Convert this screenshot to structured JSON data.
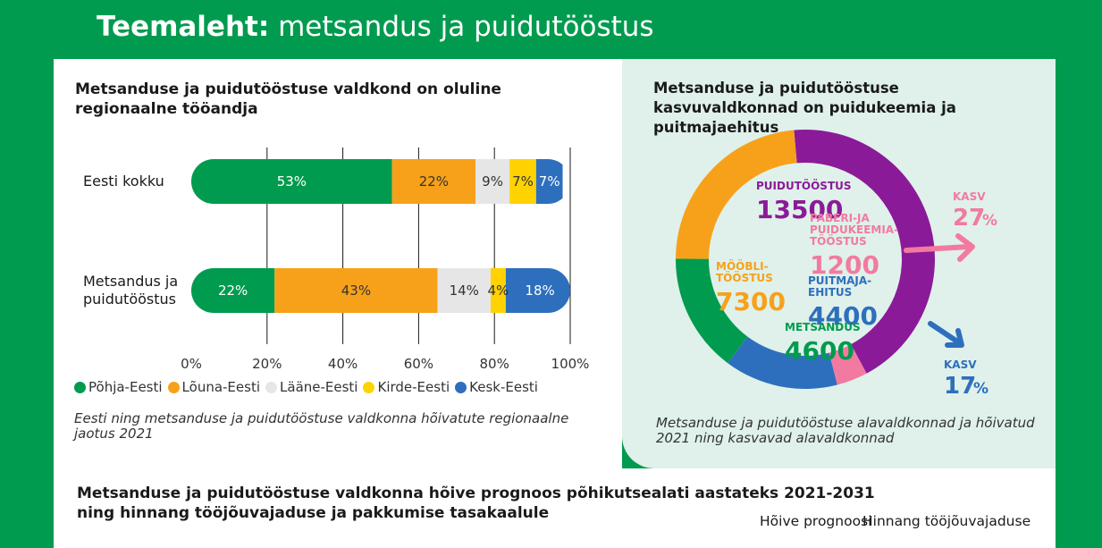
{
  "header": {
    "title_bold": "Teemaleht:",
    "title_rest": " metsandus ja puidutööstus"
  },
  "colors": {
    "pohja": "#009b4e",
    "louna": "#f7a11a",
    "laane": "#e6e6e6",
    "kirde": "#ffd200",
    "kesk": "#2e6fbd",
    "puidutoostus": "#8b1a99",
    "paber": "#f27aa0",
    "mobli": "#f7a11a",
    "puitmaja": "#2e6fbd",
    "metsandus": "#009b4e"
  },
  "left": {
    "heading": "Metsanduse ja puidutööstuse valdkond on oluline regionaalne tööandja",
    "caption": "Eesti ning metsanduse ja puidutööstuse valdkonna hõivatute regionaalne jaotus 2021"
  },
  "right": {
    "heading": "Metsanduse ja puidutööstuse kasvuvaldkonnad on puidukeemia ja puitmajaehitus",
    "caption": "Metsanduse ja puidutööstuse alavaldkonnad ja hõivatud 2021 ning kasvavad alavaldkonnad"
  },
  "bottom": {
    "heading": "Metsanduse ja puidutööstuse valdkonna hõive prognoos põhikutsealati aastateks 2021-2031 ning hinnang tööjõuvajaduse ja pakkumise tasakaalule",
    "col1": "Hõive prognoosi",
    "col2": "Hinnang tööjõuvajaduse"
  },
  "chart_data": [
    {
      "type": "bar",
      "orientation": "horizontal-stacked",
      "categories": [
        "Eesti kokku",
        "Metsandus ja puidutööstus"
      ],
      "category_lines": [
        [
          "Eesti kokku"
        ],
        [
          "Metsandus ja",
          "puidutööstus"
        ]
      ],
      "series": [
        {
          "name": "Põhja-Eesti",
          "values": [
            53,
            22
          ],
          "labels": [
            "53%",
            "22%"
          ],
          "color": "#009b4e",
          "label_color": "#ffffff"
        },
        {
          "name": "Lõuna-Eesti",
          "values": [
            22,
            43
          ],
          "labels": [
            "22%",
            "43%"
          ],
          "color": "#f7a11a",
          "label_color": "#333333"
        },
        {
          "name": "Lääne-Eesti",
          "values": [
            9,
            14
          ],
          "labels": [
            "9%",
            "14%"
          ],
          "color": "#e6e6e6",
          "label_color": "#333333"
        },
        {
          "name": "Kirde-Eesti",
          "values": [
            7,
            4
          ],
          "labels": [
            "7%",
            "4%"
          ],
          "color": "#ffd200",
          "label_color": "#333333"
        },
        {
          "name": "Kesk-Eesti",
          "values": [
            7,
            18
          ],
          "labels": [
            "7%",
            "18%"
          ],
          "color": "#2e6fbd",
          "label_color": "#ffffff"
        }
      ],
      "xticks": [
        "0%",
        "20%",
        "40%",
        "60%",
        "80%",
        "100%"
      ],
      "xlim": [
        0,
        100
      ],
      "legend_position": "bottom"
    },
    {
      "type": "pie",
      "style": "donut",
      "slices": [
        {
          "name_lines": [
            "PUIDUTÖÖSTUS"
          ],
          "value": 13500,
          "label": "13500",
          "color": "#8b1a99"
        },
        {
          "name_lines": [
            "PABERI-JA",
            "PUIDUKEEMIA-",
            "TÖÖSTUS"
          ],
          "value": 1200,
          "label": "1200",
          "color": "#f27aa0"
        },
        {
          "name_lines": [
            "PUITMAJA-",
            "EHITUS"
          ],
          "value": 4400,
          "label": "4400",
          "color": "#2e6fbd"
        },
        {
          "name_lines": [
            "METSANDUS"
          ],
          "value": 4600,
          "label": "4600",
          "color": "#009b4e"
        },
        {
          "name_lines": [
            "MÖÖBLI-",
            "TÖÖSTUS"
          ],
          "value": 7300,
          "label": "7300",
          "color": "#f7a11a"
        }
      ],
      "growth": [
        {
          "label": "KASV",
          "value": "27",
          "unit": "%",
          "color": "#f27aa0"
        },
        {
          "label": "KASV",
          "value": "17",
          "unit": "%",
          "color": "#2e6fbd"
        }
      ]
    }
  ]
}
